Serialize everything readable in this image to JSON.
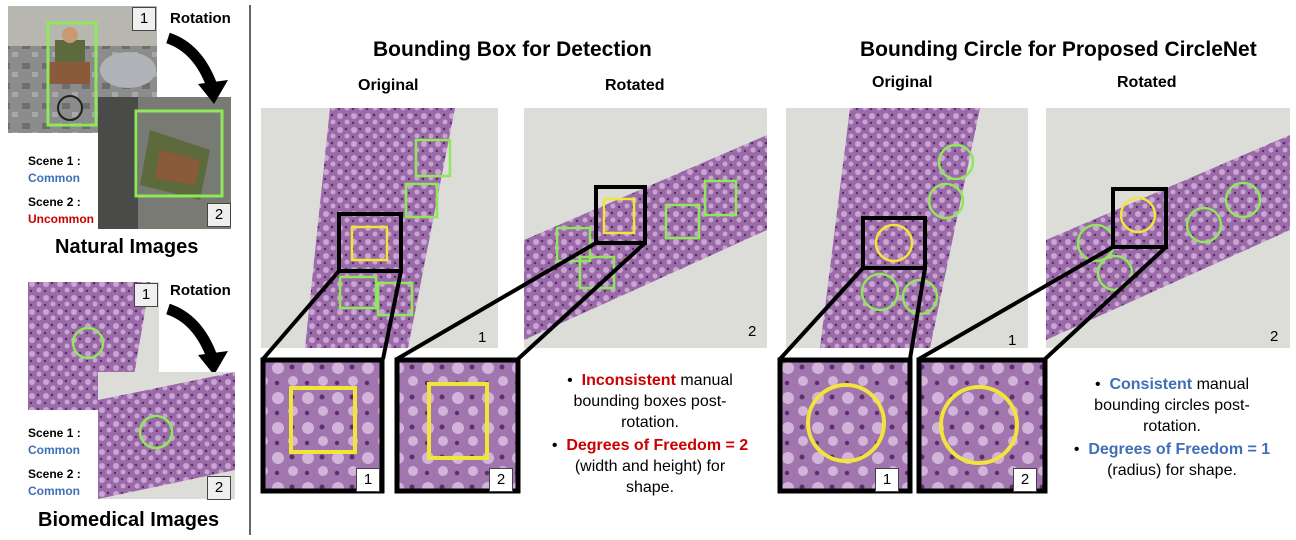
{
  "left": {
    "rotation_label_1": "Rotation",
    "rotation_label_2": "Rotation",
    "natural": {
      "scene1_label": "Scene 1 :",
      "scene1_value": "Common",
      "scene2_label": "Scene 2 :",
      "scene2_value": "Uncommon",
      "title": "Natural Images",
      "num1": "1",
      "num2": "2"
    },
    "biomedical": {
      "scene1_label": "Scene 1 :",
      "scene1_value": "Common",
      "scene2_label": "Scene 2 :",
      "scene2_value": "Common",
      "title": "Biomedical Images",
      "num1": "1",
      "num2": "2"
    }
  },
  "box_panel": {
    "title": "Bounding Box for Detection",
    "original_label": "Original",
    "rotated_label": "Rotated",
    "num1": "1",
    "num2": "2",
    "zoom_num1": "1",
    "zoom_num2": "2",
    "bullet1_emph": "Inconsistent",
    "bullet1_rest_a": " manual",
    "bullet1_rest_b": "bounding boxes post-",
    "bullet1_rest_c": "rotation.",
    "bullet2_emph": "Degrees of Freedom = 2",
    "bullet2_rest_a": "(width and height) for",
    "bullet2_rest_b": "shape."
  },
  "circle_panel": {
    "title": "Bounding Circle for Proposed CircleNet",
    "original_label": "Original",
    "rotated_label": "Rotated",
    "num1": "1",
    "num2": "2",
    "zoom_num1": "1",
    "zoom_num2": "2",
    "bullet1_emph": "Consistent",
    "bullet1_rest_a": " manual",
    "bullet1_rest_b": "bounding circles post-",
    "bullet1_rest_c": "rotation.",
    "bullet2_emph": "Degrees of Freedom = 1",
    "bullet2_rest_a": "(radius) for shape."
  },
  "colors": {
    "accent_green": "#8fe85a",
    "accent_yellow": "#f2e53a",
    "tissue": "#9b6aa8",
    "blue_text": "#3f6fb5",
    "red_text": "#cc0000"
  }
}
